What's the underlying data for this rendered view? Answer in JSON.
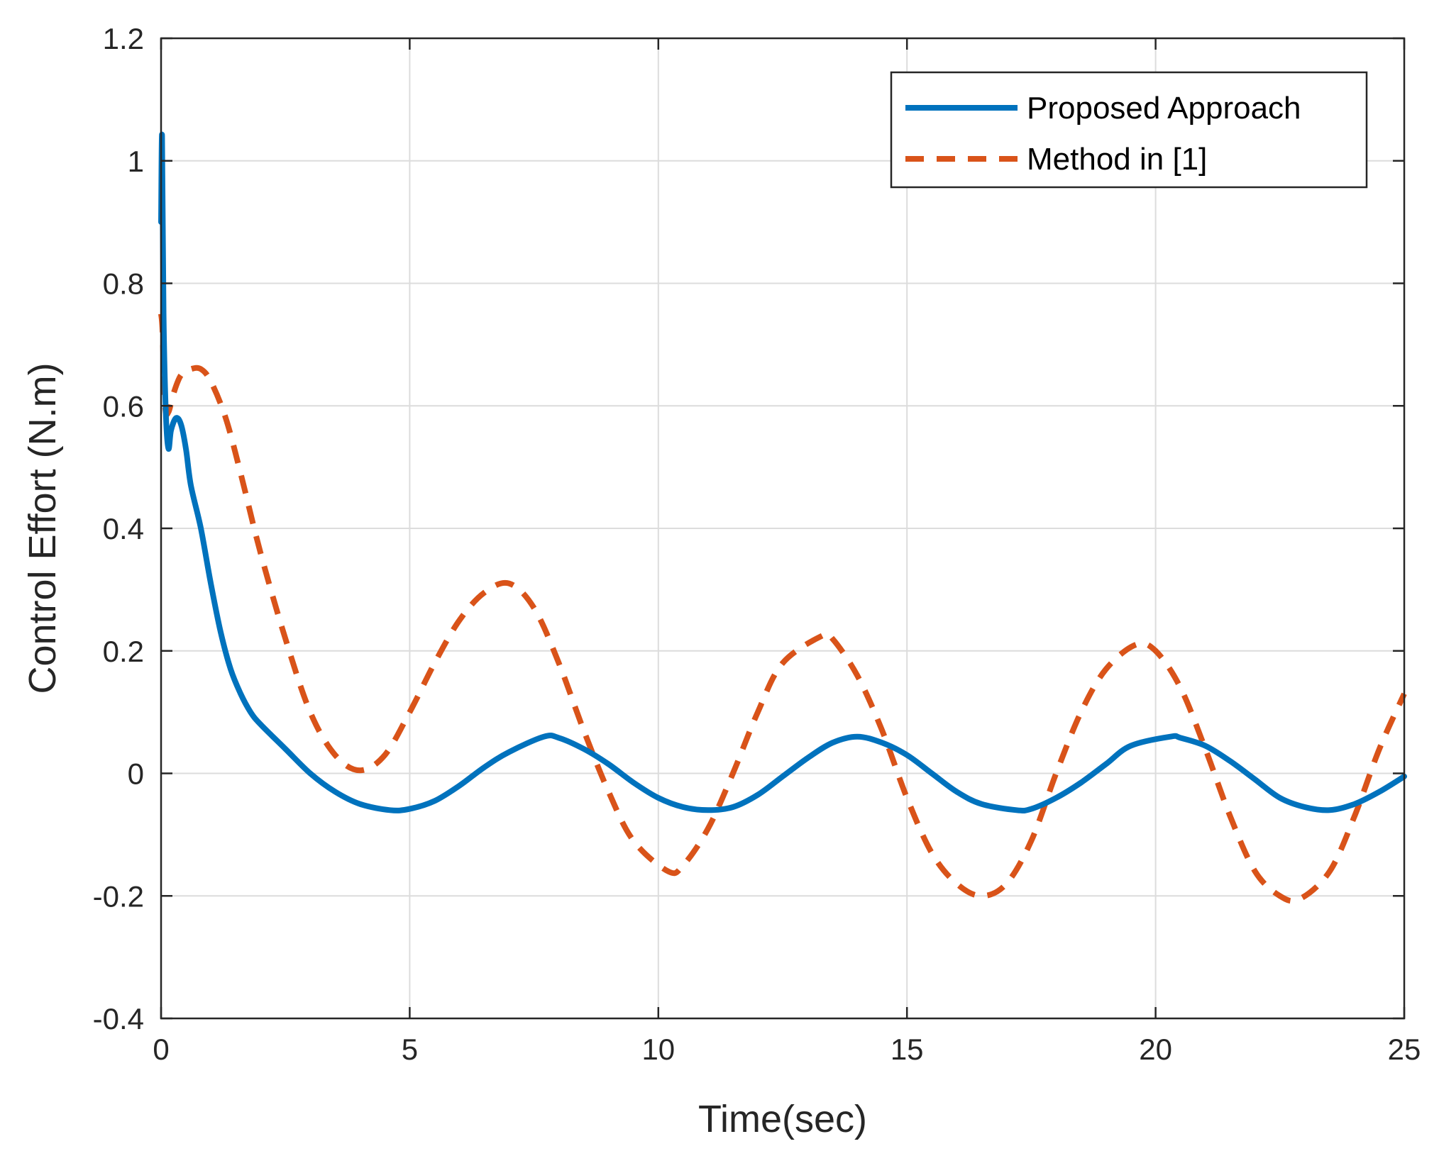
{
  "chart_data": {
    "type": "line",
    "title": "",
    "xlabel": "Time(sec)",
    "ylabel": "Control Effort (N.m)",
    "xlim": [
      0,
      25
    ],
    "ylim": [
      -0.4,
      1.2
    ],
    "xticks": [
      0,
      5,
      10,
      15,
      20,
      25
    ],
    "xtick_labels": [
      "0",
      "5",
      "10",
      "15",
      "20",
      "25"
    ],
    "yticks": [
      -0.4,
      -0.2,
      0,
      0.2,
      0.4,
      0.6,
      0.8,
      1,
      1.2
    ],
    "ytick_labels": [
      "-0.4",
      "-0.2",
      "0",
      "0.2",
      "0.4",
      "0.6",
      "0.8",
      "1",
      "1.2"
    ],
    "grid": true,
    "legend": {
      "location": "top-right",
      "entries": [
        "Proposed Approach",
        "Method in [1]"
      ]
    },
    "series": [
      {
        "name": "Proposed Approach",
        "color": "#0072BD",
        "style": "solid",
        "x": [
          0,
          0.02,
          0.05,
          0.1,
          0.15,
          0.2,
          0.3,
          0.4,
          0.5,
          0.6,
          0.8,
          1.0,
          1.2,
          1.4,
          1.6,
          1.8,
          2.0,
          2.5,
          3.0,
          3.5,
          4.0,
          4.6,
          5.0,
          5.5,
          6.0,
          6.5,
          7.0,
          7.7,
          8.0,
          8.5,
          9.0,
          9.5,
          10.0,
          10.5,
          11.0,
          11.5,
          12.0,
          12.5,
          13.0,
          13.5,
          14.0,
          14.5,
          15.0,
          15.5,
          16.0,
          16.5,
          17.2,
          17.5,
          18.0,
          18.5,
          19.0,
          19.5,
          20.3,
          20.5,
          21.0,
          21.5,
          22.0,
          22.5,
          23.0,
          23.5,
          24.0,
          24.5,
          25.0
        ],
        "y": [
          0.9,
          1.04,
          0.75,
          0.58,
          0.53,
          0.56,
          0.58,
          0.57,
          0.53,
          0.47,
          0.4,
          0.31,
          0.23,
          0.17,
          0.13,
          0.1,
          0.08,
          0.04,
          0.0,
          -0.03,
          -0.05,
          -0.06,
          -0.058,
          -0.045,
          -0.02,
          0.01,
          0.035,
          0.06,
          0.058,
          0.04,
          0.015,
          -0.015,
          -0.04,
          -0.055,
          -0.06,
          -0.055,
          -0.035,
          -0.005,
          0.025,
          0.05,
          0.06,
          0.05,
          0.03,
          0.0,
          -0.03,
          -0.05,
          -0.06,
          -0.058,
          -0.04,
          -0.015,
          0.015,
          0.045,
          0.06,
          0.058,
          0.045,
          0.02,
          -0.01,
          -0.04,
          -0.055,
          -0.06,
          -0.05,
          -0.03,
          -0.005
        ]
      },
      {
        "name": "Method in [1]",
        "color": "#D95319",
        "style": "dashed",
        "x": [
          0,
          0.03,
          0.08,
          0.15,
          0.25,
          0.4,
          0.6,
          0.8,
          1.0,
          1.3,
          1.6,
          2.0,
          2.5,
          3.0,
          3.5,
          4.0,
          4.5,
          5.0,
          5.5,
          6.0,
          6.5,
          7.0,
          7.5,
          8.0,
          8.5,
          9.0,
          9.5,
          10.2,
          10.5,
          11.0,
          11.5,
          12.0,
          12.5,
          13.3,
          13.5,
          14.0,
          14.5,
          15.0,
          15.5,
          16.0,
          16.5,
          17.0,
          17.5,
          18.0,
          18.5,
          19.0,
          19.6,
          20.0,
          20.5,
          21.0,
          21.5,
          22.0,
          22.5,
          22.9,
          23.5,
          24.0,
          24.5,
          25.0
        ],
        "y": [
          0.75,
          0.72,
          0.6,
          0.59,
          0.62,
          0.65,
          0.66,
          0.66,
          0.64,
          0.58,
          0.49,
          0.36,
          0.22,
          0.1,
          0.03,
          0.005,
          0.03,
          0.1,
          0.18,
          0.25,
          0.295,
          0.31,
          0.27,
          0.18,
          0.07,
          -0.03,
          -0.11,
          -0.16,
          -0.15,
          -0.09,
          0.0,
          0.1,
          0.18,
          0.225,
          0.22,
          0.16,
          0.07,
          -0.04,
          -0.13,
          -0.18,
          -0.2,
          -0.18,
          -0.11,
          0.0,
          0.1,
          0.17,
          0.21,
          0.2,
          0.14,
          0.04,
          -0.07,
          -0.16,
          -0.2,
          -0.205,
          -0.16,
          -0.07,
          0.04,
          0.13
        ]
      }
    ]
  }
}
